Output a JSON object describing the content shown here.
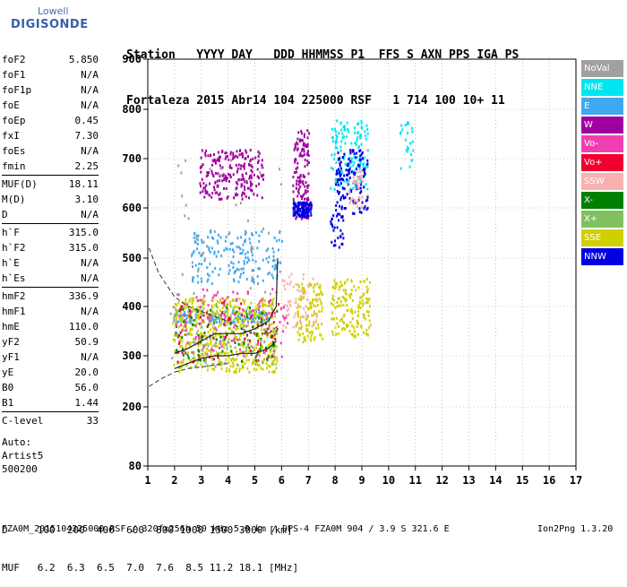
{
  "logo": {
    "line1": "Lowell",
    "line2": "DIGISONDE"
  },
  "header": {
    "row1": "Station   YYYY DAY   DDD HHMMSS P1  FFS S AXN PPS IGA PS",
    "row2": "Fortaleza 2015 Abr14 104 225000 RSF   1 714 100 10+ 11"
  },
  "params": {
    "group1": [
      {
        "k": "foF2",
        "v": "5.850"
      },
      {
        "k": "foF1",
        "v": "N/A"
      },
      {
        "k": "foF1p",
        "v": "N/A"
      },
      {
        "k": "foE",
        "v": "N/A"
      },
      {
        "k": "foEp",
        "v": "0.45"
      },
      {
        "k": "fxI",
        "v": "7.30"
      },
      {
        "k": "foEs",
        "v": "N/A"
      },
      {
        "k": "fmin",
        "v": "2.25"
      }
    ],
    "group2": [
      {
        "k": "MUF(D)",
        "v": "18.11"
      },
      {
        "k": "M(D)",
        "v": "3.10"
      },
      {
        "k": "D",
        "v": "N/A"
      }
    ],
    "group3": [
      {
        "k": "h`F",
        "v": "315.0"
      },
      {
        "k": "h`F2",
        "v": "315.0"
      },
      {
        "k": "h`E",
        "v": "N/A"
      },
      {
        "k": "h`Es",
        "v": "N/A"
      }
    ],
    "group4": [
      {
        "k": "hmF2",
        "v": "336.9"
      },
      {
        "k": "hmF1",
        "v": "N/A"
      },
      {
        "k": "hmE",
        "v": "110.0"
      },
      {
        "k": "yF2",
        "v": "50.9"
      },
      {
        "k": "yF1",
        "v": "N/A"
      },
      {
        "k": "yE",
        "v": "20.0"
      },
      {
        "k": "B0",
        "v": "56.0"
      },
      {
        "k": "B1",
        "v": "1.44"
      }
    ],
    "group5": [
      {
        "k": "C-level",
        "v": "33"
      }
    ]
  },
  "auto": {
    "line1": "Auto:",
    "line2": "Artist5",
    "line3": "500200"
  },
  "legend": [
    {
      "label": "NoVal",
      "color": "#a0a0a0"
    },
    {
      "label": "NNE",
      "color": "#00e5f0"
    },
    {
      "label": "E",
      "color": "#40a8f0"
    },
    {
      "label": "W",
      "color": "#a000a0"
    },
    {
      "label": "Vo-",
      "color": "#f040b0"
    },
    {
      "label": "Vo+",
      "color": "#f00030"
    },
    {
      "label": "SSW",
      "color": "#f8b0b0"
    },
    {
      "label": "X-",
      "color": "#008000"
    },
    {
      "label": "X+",
      "color": "#80c060"
    },
    {
      "label": "SSE",
      "color": "#d0d000"
    },
    {
      "label": "NNW",
      "color": "#0000e0"
    }
  ],
  "footer": {
    "row1": "D     100  200  400  600  800 1000 1500 3000 [km]",
    "row2": "MUF   6.2  6.3  6.5  7.0  7.6  8.5 11.2 18.1 [MHz]",
    "row3": "FZA0M_2015104225000.RSF / 320fx256h 50 kHz 5.0 km / DPS-4 FZA0M 904 / 3.9 S 321.6 E",
    "version": "Ion2Png 1.3.20"
  },
  "chart_data": {
    "type": "scatter",
    "x_ticks": [
      "1",
      "2",
      "3",
      "4",
      "5",
      "6",
      "7",
      "8",
      "9",
      "10",
      "11",
      "12",
      "13",
      "14",
      "15",
      "16",
      "17"
    ],
    "y_ticks": [
      "80",
      "200",
      "300",
      "400",
      "500",
      "600",
      "700",
      "800",
      "900"
    ],
    "xlim": [
      1,
      17
    ],
    "ylim": [
      80,
      900
    ],
    "grid": true,
    "clusters": [
      {
        "legend": "W",
        "x": [
          2.9,
          5.3
        ],
        "y": [
          620,
          720
        ],
        "n": 220
      },
      {
        "legend": "W",
        "x": [
          6.4,
          7.0
        ],
        "y": [
          580,
          760
        ],
        "n": 140
      },
      {
        "legend": "E",
        "x": [
          2.6,
          6.0
        ],
        "y": [
          450,
          560
        ],
        "n": 180
      },
      {
        "legend": "E",
        "x": [
          1.9,
          5.5
        ],
        "y": [
          370,
          395
        ],
        "n": 150
      },
      {
        "legend": "NNE",
        "x": [
          7.8,
          9.2
        ],
        "y": [
          640,
          780
        ],
        "n": 150
      },
      {
        "legend": "NNW",
        "x": [
          6.4,
          7.1
        ],
        "y": [
          585,
          615
        ],
        "n": 110
      },
      {
        "legend": "NNW",
        "x": [
          8.0,
          9.2
        ],
        "y": [
          590,
          720
        ],
        "n": 130
      },
      {
        "legend": "NNW",
        "x": [
          7.8,
          8.3
        ],
        "y": [
          520,
          590
        ],
        "n": 30
      },
      {
        "legend": "SSE",
        "x": [
          1.9,
          5.8
        ],
        "y": [
          270,
          420
        ],
        "n": 520
      },
      {
        "legend": "SSE",
        "x": [
          6.5,
          7.5
        ],
        "y": [
          330,
          450
        ],
        "n": 120
      },
      {
        "legend": "SSE",
        "x": [
          7.8,
          9.3
        ],
        "y": [
          340,
          460
        ],
        "n": 150
      },
      {
        "legend": "SSW",
        "x": [
          6.0,
          7.3
        ],
        "y": [
          360,
          470
        ],
        "n": 60
      },
      {
        "legend": "SSW",
        "x": [
          8.5,
          9.0
        ],
        "y": [
          600,
          680
        ],
        "n": 40
      },
      {
        "legend": "X-",
        "x": [
          2.0,
          5.8
        ],
        "y": [
          290,
          400
        ],
        "n": 90
      },
      {
        "legend": "X+",
        "x": [
          2.0,
          5.8
        ],
        "y": [
          280,
          410
        ],
        "n": 90
      },
      {
        "legend": "Vo-",
        "x": [
          2.0,
          6.2
        ],
        "y": [
          300,
          440
        ],
        "n": 120
      },
      {
        "legend": "Vo+",
        "x": [
          2.0,
          6.0
        ],
        "y": [
          290,
          420
        ],
        "n": 60
      },
      {
        "legend": "NoVal",
        "x": [
          1.8,
          6.0
        ],
        "y": [
          280,
          700
        ],
        "n": 60
      },
      {
        "legend": "NNE",
        "x": [
          10.4,
          10.9
        ],
        "y": [
          680,
          780
        ],
        "n": 25
      }
    ],
    "profile": {
      "x": [
        1.05,
        1.4,
        2.0,
        2.5,
        3.0,
        3.5,
        4.0,
        4.5,
        5.0,
        5.5,
        5.85
      ],
      "y": [
        520,
        470,
        420,
        400,
        390,
        380,
        370,
        355,
        345,
        345,
        360
      ]
    },
    "trace_upper": {
      "x": [
        2.0,
        2.5,
        3.0,
        3.5,
        4.0,
        4.5,
        5.0,
        5.5,
        5.8,
        5.85
      ],
      "y": [
        305,
        315,
        330,
        345,
        345,
        345,
        355,
        370,
        400,
        500
      ]
    },
    "trace_lower": {
      "x": [
        2.0,
        2.5,
        3.0,
        3.5,
        4.0,
        4.5,
        5.0,
        5.5,
        5.8
      ],
      "y": [
        275,
        285,
        295,
        300,
        300,
        305,
        305,
        315,
        330
      ]
    },
    "bottom_curve": {
      "x": [
        1.05,
        1.5,
        2.0,
        2.5,
        3.0,
        3.5,
        4.0
      ],
      "y": [
        240,
        255,
        268,
        275,
        278,
        282,
        285
      ]
    }
  }
}
